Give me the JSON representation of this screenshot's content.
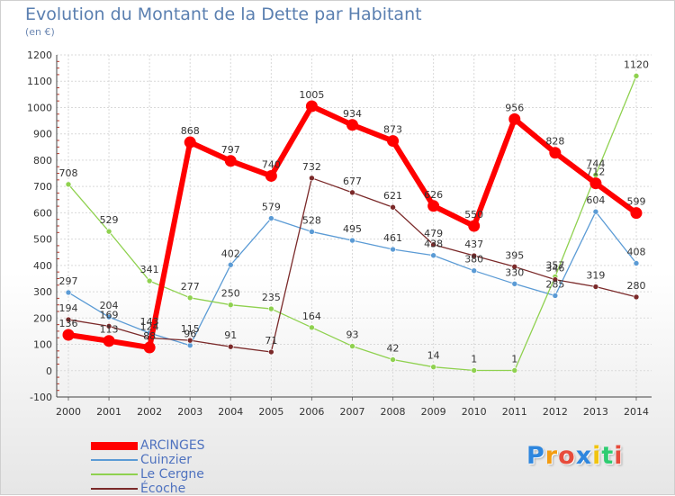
{
  "chart_data": {
    "type": "line",
    "title": "Evolution du Montant de la Dette par Habitant",
    "subtitle": "(en €)",
    "xlabel": "",
    "ylabel": "",
    "x": [
      "2000",
      "2001",
      "2002",
      "2003",
      "2004",
      "2005",
      "2006",
      "2007",
      "2008",
      "2009",
      "2010",
      "2011",
      "2012",
      "2013",
      "2014"
    ],
    "ylim": [
      -100,
      1200
    ],
    "yticks": [
      -100,
      0,
      100,
      200,
      300,
      400,
      500,
      600,
      700,
      800,
      900,
      1000,
      1100,
      1200
    ],
    "grid": true,
    "legend_position": "bottom-left",
    "series": [
      {
        "name": "ARCINGES",
        "color": "#ff0000",
        "values": [
          136,
          113,
          88,
          868,
          797,
          740,
          1005,
          934,
          873,
          626,
          550,
          956,
          828,
          712,
          599
        ]
      },
      {
        "name": "Cuinzier",
        "color": "#5b9bd5",
        "values": [
          297,
          204,
          143,
          96,
          402,
          579,
          528,
          495,
          461,
          438,
          380,
          330,
          285,
          604,
          408
        ]
      },
      {
        "name": "Le Cergne",
        "color": "#8fd14f",
        "values": [
          708,
          529,
          341,
          277,
          250,
          235,
          164,
          93,
          42,
          14,
          1,
          1,
          357,
          744,
          1120
        ]
      },
      {
        "name": "Écoche",
        "color": "#7b2a2a",
        "values": [
          194,
          169,
          124,
          115,
          91,
          71,
          732,
          677,
          621,
          479,
          437,
          395,
          346,
          319,
          280
        ]
      }
    ]
  },
  "logo": {
    "letters": [
      "P",
      "r",
      "o",
      "x",
      "i",
      "t",
      "i"
    ],
    "colors": [
      "#2e86de",
      "#f39c12",
      "#e74c3c",
      "#2e86de",
      "#f1c40f",
      "#2ecc71",
      "#e74c3c"
    ]
  }
}
